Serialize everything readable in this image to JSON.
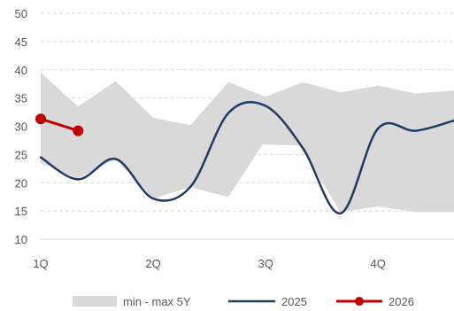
{
  "chart_data": {
    "type": "line",
    "title": "",
    "xlabel": "",
    "ylabel": "",
    "ylim": [
      10,
      50
    ],
    "yticks": [
      10,
      15,
      20,
      25,
      30,
      35,
      40,
      45,
      50
    ],
    "grid": true,
    "x_axis": {
      "min": 0,
      "max": 14.7,
      "ticks": [
        {
          "label": "1Q",
          "x": 0
        },
        {
          "label": "2Q",
          "x": 4
        },
        {
          "label": "3Q",
          "x": 8
        },
        {
          "label": "4Q",
          "x": 12
        }
      ]
    },
    "band": {
      "name": "min - max 5Y",
      "color": "#d9d9d9",
      "upper": [
        [
          0,
          39.5
        ],
        [
          1.33,
          33.5
        ],
        [
          2.67,
          38
        ],
        [
          4,
          31.5
        ],
        [
          5.33,
          30.2
        ],
        [
          6.67,
          37.8
        ],
        [
          8,
          35.2
        ],
        [
          9.33,
          37.8
        ],
        [
          10.67,
          36
        ],
        [
          12,
          37.2
        ],
        [
          13.33,
          35.8
        ],
        [
          14.7,
          36.3
        ]
      ],
      "lower": [
        [
          0,
          23.5
        ],
        [
          1.33,
          20.8
        ],
        [
          2.67,
          24.2
        ],
        [
          4,
          17.2
        ],
        [
          5.33,
          19.2
        ],
        [
          6.67,
          17.5
        ],
        [
          7.9,
          26.8
        ],
        [
          9.2,
          26.6
        ],
        [
          10.67,
          14.8
        ],
        [
          12,
          15.8
        ],
        [
          13.33,
          14.8
        ],
        [
          14.7,
          14.8
        ]
      ]
    },
    "series": [
      {
        "name": "2025",
        "color": "#1f3b63",
        "points": [
          [
            0,
            24.5
          ],
          [
            1.33,
            20.6
          ],
          [
            2.67,
            24.2
          ],
          [
            4,
            17.2
          ],
          [
            5.33,
            19.3
          ],
          [
            6.67,
            32.3
          ],
          [
            8,
            33.6
          ],
          [
            9.33,
            26.1
          ],
          [
            10.67,
            14.6
          ],
          [
            12,
            29.6
          ],
          [
            13.33,
            29.2
          ],
          [
            14.7,
            31
          ]
        ]
      },
      {
        "name": "2026",
        "color": "#c00000",
        "markers": true,
        "points": [
          [
            0,
            31.3
          ],
          [
            1.33,
            29.2
          ]
        ]
      }
    ],
    "legend": {
      "position": "bottom",
      "entries": [
        "min - max 5Y",
        "2025",
        "2026"
      ]
    }
  }
}
